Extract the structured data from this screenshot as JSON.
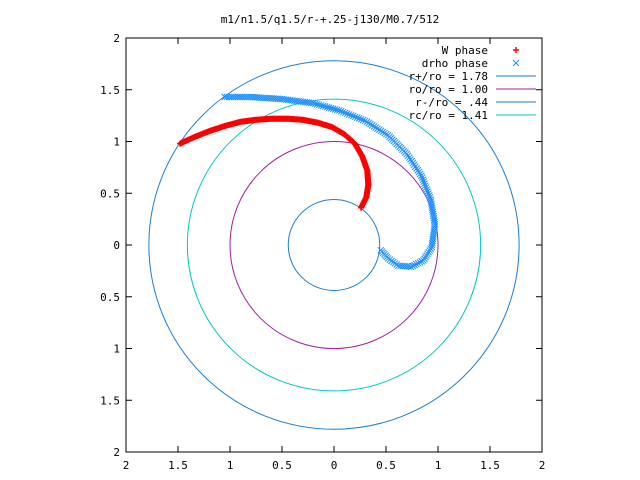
{
  "chart_data": {
    "type": "scatter",
    "title": "m1/n1.5/q1.5/r-+.25-j130/M0.7/512",
    "xlabel": "",
    "ylabel": "",
    "xlim": [
      -2,
      2
    ],
    "ylim": [
      -2,
      2
    ],
    "grid": false,
    "legend_position": "top-right",
    "x_tick_values": [
      -2,
      -1.5,
      -1,
      -0.5,
      0,
      0.5,
      1,
      1.5,
      2
    ],
    "x_tick_labels": [
      "2",
      "1.5",
      "1",
      "0.5",
      "0",
      "0.5",
      "1",
      "1.5",
      "2"
    ],
    "y_tick_values": [
      2,
      1.5,
      1,
      0.5,
      0,
      -0.5,
      -1,
      -1.5,
      -2
    ],
    "y_tick_labels": [
      "2",
      "1.5",
      "1",
      "0.5",
      "0",
      "0.5",
      "1",
      "1.5",
      "2"
    ],
    "scatter_series": [
      {
        "name": "W phase",
        "marker": "+",
        "color": "#ff0000",
        "points": [
          [
            -1.48,
            0.98
          ],
          [
            -1.35,
            1.04
          ],
          [
            -1.2,
            1.1
          ],
          [
            -1.05,
            1.15
          ],
          [
            -0.9,
            1.19
          ],
          [
            -0.75,
            1.21
          ],
          [
            -0.6,
            1.22
          ],
          [
            -0.45,
            1.22
          ],
          [
            -0.3,
            1.21
          ],
          [
            -0.15,
            1.18
          ],
          [
            -0.02,
            1.14
          ],
          [
            0.1,
            1.07
          ],
          [
            0.2,
            0.98
          ],
          [
            0.27,
            0.86
          ],
          [
            0.32,
            0.72
          ],
          [
            0.33,
            0.58
          ],
          [
            0.31,
            0.46
          ],
          [
            0.26,
            0.36
          ]
        ]
      },
      {
        "name": "drho phase",
        "marker": "x",
        "color": "#1e90ff",
        "points": [
          [
            -1.05,
            1.43
          ],
          [
            -0.8,
            1.43
          ],
          [
            -0.5,
            1.41
          ],
          [
            -0.2,
            1.37
          ],
          [
            0.05,
            1.3
          ],
          [
            0.3,
            1.2
          ],
          [
            0.52,
            1.06
          ],
          [
            0.7,
            0.88
          ],
          [
            0.84,
            0.67
          ],
          [
            0.93,
            0.44
          ],
          [
            0.97,
            0.2
          ],
          [
            0.94,
            -0.02
          ],
          [
            0.86,
            -0.15
          ],
          [
            0.74,
            -0.21
          ],
          [
            0.62,
            -0.2
          ],
          [
            0.52,
            -0.13
          ],
          [
            0.45,
            -0.05
          ]
        ]
      }
    ],
    "circles": [
      {
        "name": "r+/ro = 1.78",
        "radius": 1.78,
        "color": "#1a7fd1"
      },
      {
        "name": "ro/ro = 1.00",
        "radius": 1.0,
        "color": "#a020a0"
      },
      {
        "name": "r-/ro = .44",
        "radius": 0.44,
        "color": "#1a7fd1"
      },
      {
        "name": "rc/ro = 1.41",
        "radius": 1.41,
        "color": "#00c8c8"
      }
    ]
  }
}
